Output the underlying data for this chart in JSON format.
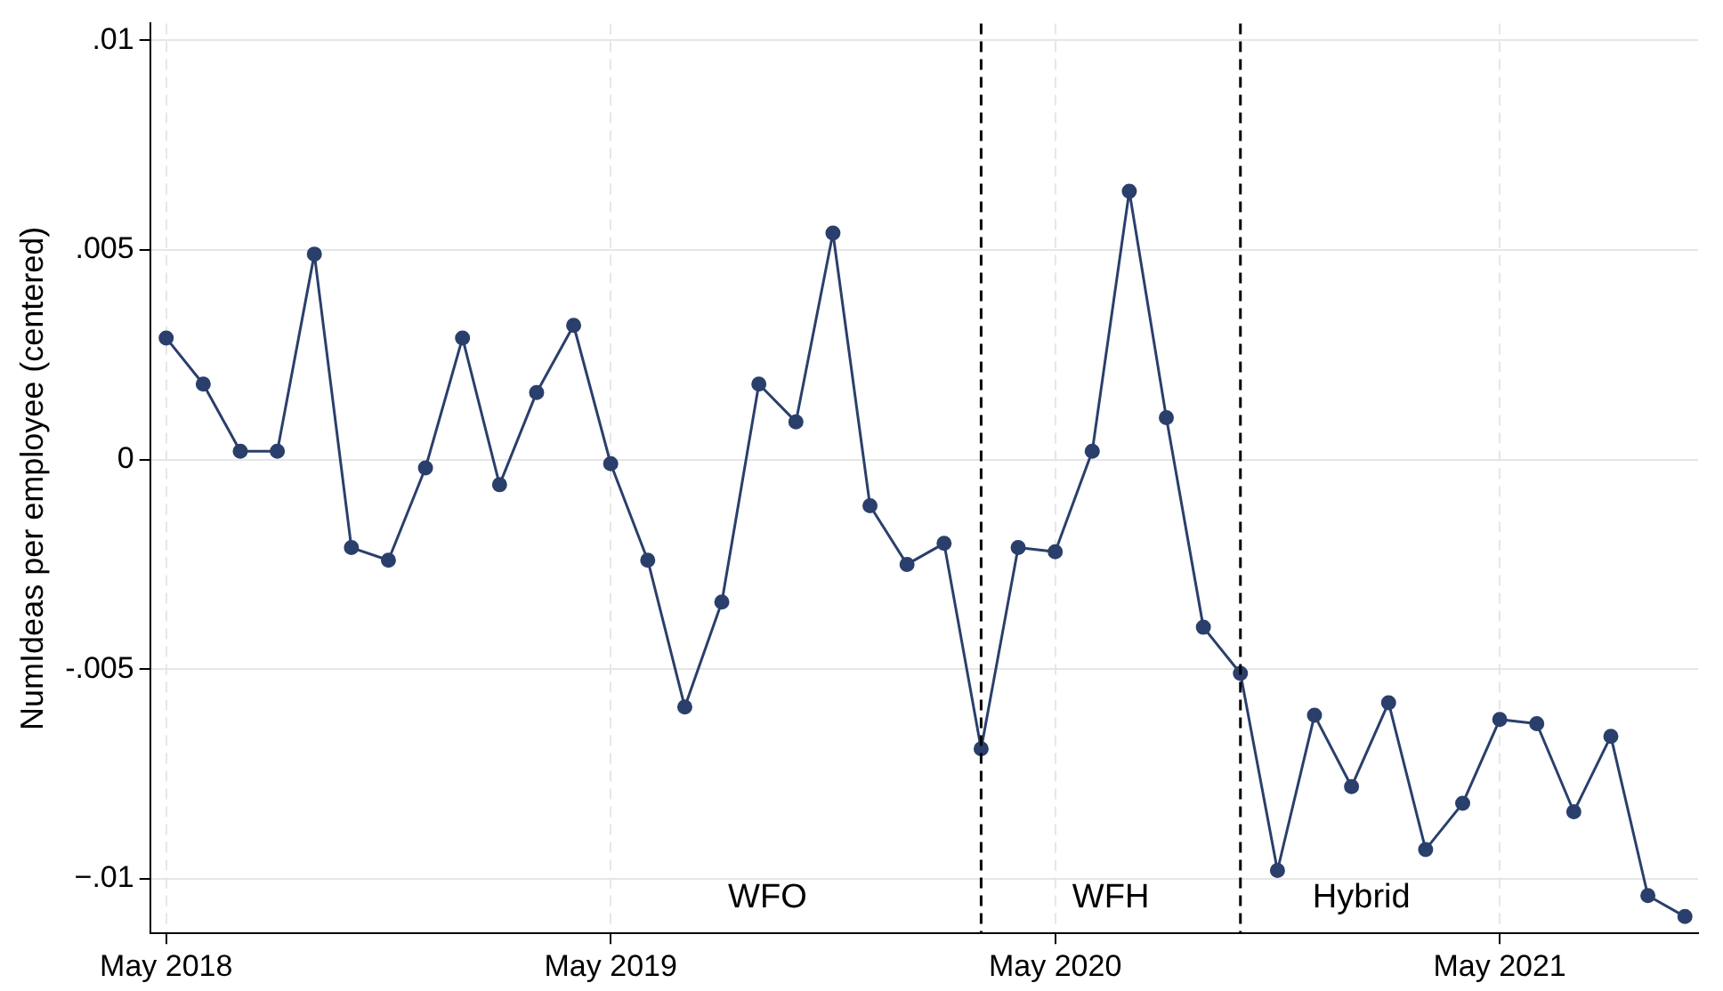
{
  "chart_data": {
    "type": "line",
    "ylabel": "NumIdeas per employee (centered)",
    "x": [
      "2018-05",
      "2018-06",
      "2018-07",
      "2018-08",
      "2018-09",
      "2018-10",
      "2018-11",
      "2018-12",
      "2019-01",
      "2019-02",
      "2019-03",
      "2019-04",
      "2019-05",
      "2019-06",
      "2019-07",
      "2019-08",
      "2019-09",
      "2019-10",
      "2019-11",
      "2019-12",
      "2020-01",
      "2020-02",
      "2020-03",
      "2020-04",
      "2020-05",
      "2020-06",
      "2020-07",
      "2020-08",
      "2020-09",
      "2020-10",
      "2020-11",
      "2020-12",
      "2021-01",
      "2021-02",
      "2021-03",
      "2021-04",
      "2021-05",
      "2021-06",
      "2021-07",
      "2021-08",
      "2021-09",
      "2021-10"
    ],
    "series": [
      {
        "color": "#2a3f6b",
        "values": [
          0.0029,
          0.0018,
          0.0002,
          0.0002,
          0.0049,
          -0.0021,
          -0.0024,
          -0.0002,
          0.0029,
          -0.0006,
          0.0016,
          0.0032,
          -0.0001,
          -0.0024,
          -0.0059,
          -0.0034,
          0.0018,
          0.0009,
          0.0054,
          -0.0011,
          -0.0025,
          -0.002,
          -0.0069,
          -0.0021,
          -0.0022,
          0.0002,
          0.0064,
          0.001,
          -0.004,
          -0.0051,
          -0.0098,
          -0.0061,
          -0.0078,
          -0.0058,
          -0.0093,
          -0.0082,
          -0.0062,
          -0.0063,
          -0.0084,
          -0.0066,
          -0.0104,
          -0.0109
        ]
      }
    ],
    "xlim": [
      "2018-04-18",
      "2021-10-12"
    ],
    "xticks": [
      {
        "value": "2018-05",
        "label": "May 2018"
      },
      {
        "value": "2019-05",
        "label": "May 2019"
      },
      {
        "value": "2020-05",
        "label": "May 2020"
      },
      {
        "value": "2021-05",
        "label": "May 2021"
      }
    ],
    "ylim": [
      -0.0113,
      0.0104
    ],
    "yticks": [
      {
        "value": -0.01,
        "label": "−.01"
      },
      {
        "value": -0.005,
        "label": "-.005"
      },
      {
        "value": 0,
        "label": "0"
      },
      {
        "value": 0.005,
        "label": ".005"
      },
      {
        "value": 0.01,
        "label": ".01"
      }
    ],
    "ref_lines": [
      {
        "axis": "x",
        "value": "2020-03",
        "color": "#000000",
        "line_style": "dashed"
      },
      {
        "axis": "x",
        "value": "2020-10",
        "color": "#000000",
        "line_style": "dashed"
      }
    ],
    "annotations": [
      "WFO",
      "WFH",
      "Hybrid"
    ],
    "grid": true,
    "legend": false,
    "marker": "circle",
    "line_style": "solid"
  }
}
